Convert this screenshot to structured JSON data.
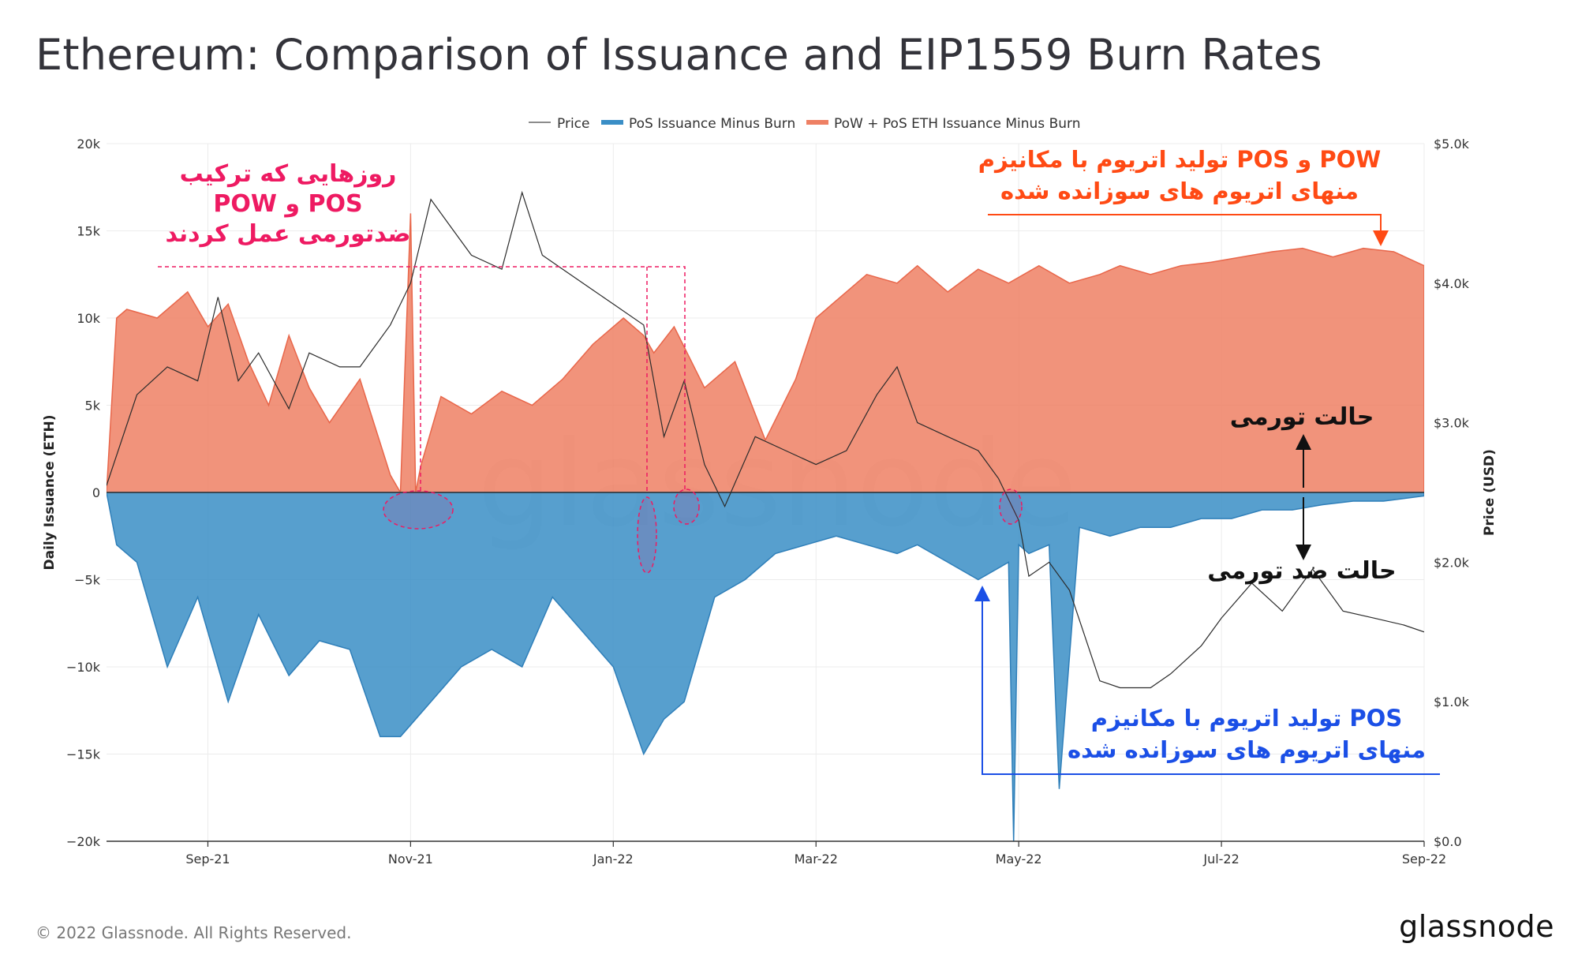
{
  "title": "Ethereum: Comparison of Issuance and EIP1559 Burn Rates",
  "footer": {
    "copyright": "© 2022 Glassnode. All Rights Reserved.",
    "logo": "glassnode"
  },
  "watermark": "glassnode",
  "colors": {
    "pow_pos": "#ee8064",
    "pos": "#3a8ec6",
    "price": "#2b2b2b",
    "annot_pink": "#ee1a62",
    "annot_orange": "#ff4a14",
    "annot_blue": "#1b4fe6"
  },
  "chart_data": {
    "type": "area",
    "legend": {
      "position": "top-center",
      "items": [
        "Price",
        "PoS Issuance Minus Burn",
        "PoW + PoS ETH Issuance Minus Burn"
      ]
    },
    "xlabel": "",
    "ylabel_left": "Daily Issuance (ETH)",
    "ylabel_right": "Price (USD)",
    "ylim_left": [
      -20000,
      20000
    ],
    "ylim_right": [
      0,
      5000
    ],
    "x_ticks": [
      "Sep-21",
      "Nov-21",
      "Jan-22",
      "Mar-22",
      "May-22",
      "Jul-22",
      "Sep-22"
    ],
    "y_ticks_left": [
      "20k",
      "15k",
      "10k",
      "5k",
      "0",
      "−5k",
      "−10k",
      "−15k",
      "−20k"
    ],
    "y_ticks_right": [
      "$5.0k",
      "$4.0k",
      "$3.0k",
      "$2.0k",
      "$1.0k",
      "$0.0"
    ],
    "x_months": [
      0,
      13
    ],
    "series": [
      {
        "name": "PoW + PoS ETH Issuance Minus Burn",
        "x": [
          0,
          0.1,
          0.2,
          0.5,
          0.8,
          1.0,
          1.2,
          1.4,
          1.6,
          1.8,
          2.0,
          2.2,
          2.5,
          2.8,
          2.9,
          3.0,
          3.05,
          3.1,
          3.3,
          3.6,
          3.9,
          4.2,
          4.5,
          4.8,
          5.1,
          5.3,
          5.4,
          5.6,
          5.9,
          6.2,
          6.5,
          6.8,
          7.0,
          7.2,
          7.5,
          7.8,
          8.0,
          8.3,
          8.6,
          8.9,
          9.2,
          9.5,
          9.8,
          10.0,
          10.3,
          10.6,
          10.9,
          11.2,
          11.5,
          11.8,
          12.1,
          12.4,
          12.7,
          13.0
        ],
        "values": [
          0,
          10000,
          10500,
          10000,
          11500,
          9500,
          10800,
          7500,
          5000,
          9000,
          6000,
          4000,
          6500,
          1000,
          0,
          16000,
          0,
          1500,
          5500,
          4500,
          5800,
          5000,
          6500,
          8500,
          10000,
          9000,
          8000,
          9500,
          6000,
          7500,
          3000,
          6500,
          10000,
          11000,
          12500,
          12000,
          13000,
          11500,
          12800,
          12000,
          13000,
          12000,
          12500,
          13000,
          12500,
          13000,
          13200,
          13500,
          13800,
          14000,
          13500,
          14000,
          13800,
          13000
        ]
      },
      {
        "name": "PoS Issuance Minus Burn",
        "x": [
          0,
          0.1,
          0.3,
          0.6,
          0.9,
          1.2,
          1.5,
          1.8,
          2.1,
          2.4,
          2.7,
          2.9,
          3.2,
          3.5,
          3.8,
          4.1,
          4.4,
          4.7,
          5.0,
          5.3,
          5.5,
          5.7,
          6.0,
          6.3,
          6.6,
          6.9,
          7.2,
          7.5,
          7.8,
          8.0,
          8.3,
          8.6,
          8.9,
          8.95,
          9.0,
          9.1,
          9.3,
          9.4,
          9.6,
          9.9,
          10.2,
          10.5,
          10.8,
          11.1,
          11.4,
          11.7,
          12.0,
          12.3,
          12.6,
          13.0
        ],
        "values": [
          0,
          -3000,
          -4000,
          -10000,
          -6000,
          -12000,
          -7000,
          -10500,
          -8500,
          -9000,
          -14000,
          -14000,
          -12000,
          -10000,
          -9000,
          -10000,
          -6000,
          -8000,
          -10000,
          -15000,
          -13000,
          -12000,
          -6000,
          -5000,
          -3500,
          -3000,
          -2500,
          -3000,
          -3500,
          -3000,
          -4000,
          -5000,
          -4000,
          -20000,
          -3000,
          -3500,
          -3000,
          -17000,
          -2000,
          -2500,
          -2000,
          -2000,
          -1500,
          -1500,
          -1000,
          -1000,
          -700,
          -500,
          -500,
          -200
        ]
      },
      {
        "name": "Price",
        "x": [
          0,
          0.3,
          0.6,
          0.9,
          1.1,
          1.3,
          1.5,
          1.8,
          2.0,
          2.3,
          2.5,
          2.8,
          3.0,
          3.2,
          3.4,
          3.6,
          3.9,
          4.1,
          4.3,
          4.5,
          4.8,
          5.0,
          5.3,
          5.5,
          5.7,
          5.9,
          6.1,
          6.4,
          6.7,
          7.0,
          7.3,
          7.6,
          7.8,
          8.0,
          8.3,
          8.6,
          8.8,
          9.0,
          9.1,
          9.3,
          9.5,
          9.8,
          10.0,
          10.3,
          10.5,
          10.8,
          11.0,
          11.3,
          11.6,
          11.9,
          12.2,
          12.5,
          12.8,
          13.0
        ],
        "values": [
          2550,
          3200,
          3400,
          3300,
          3900,
          3300,
          3500,
          3100,
          3500,
          3400,
          3400,
          3700,
          4000,
          4600,
          4400,
          4200,
          4100,
          4650,
          4200,
          4100,
          3950,
          3850,
          3700,
          2900,
          3300,
          2700,
          2400,
          2900,
          2800,
          2700,
          2800,
          3200,
          3400,
          3000,
          2900,
          2800,
          2600,
          2300,
          1900,
          2000,
          1800,
          1150,
          1100,
          1100,
          1200,
          1400,
          1600,
          1850,
          1650,
          1950,
          1650,
          1600,
          1550,
          1500
        ]
      }
    ],
    "annotations": [
      {
        "id": "deflation_days",
        "lines": [
          "روزهایی که ترکیب",
          "POW و POS",
          "ضدتورمی عمل کردند"
        ]
      },
      {
        "id": "pow_pos_label",
        "lines": [
          "تولید اتریوم با مکانیزم POS  و POW",
          "منهای  اتریوم های سوزانده شده"
        ]
      },
      {
        "id": "inflation",
        "text": "حالت تورمی"
      },
      {
        "id": "deflation",
        "text": "حالت ضد تورمی"
      },
      {
        "id": "pos_label",
        "lines": [
          "تولید اتریوم با مکانیزم POS",
          "منهای  اتریوم های سوزانده شده"
        ]
      }
    ]
  }
}
